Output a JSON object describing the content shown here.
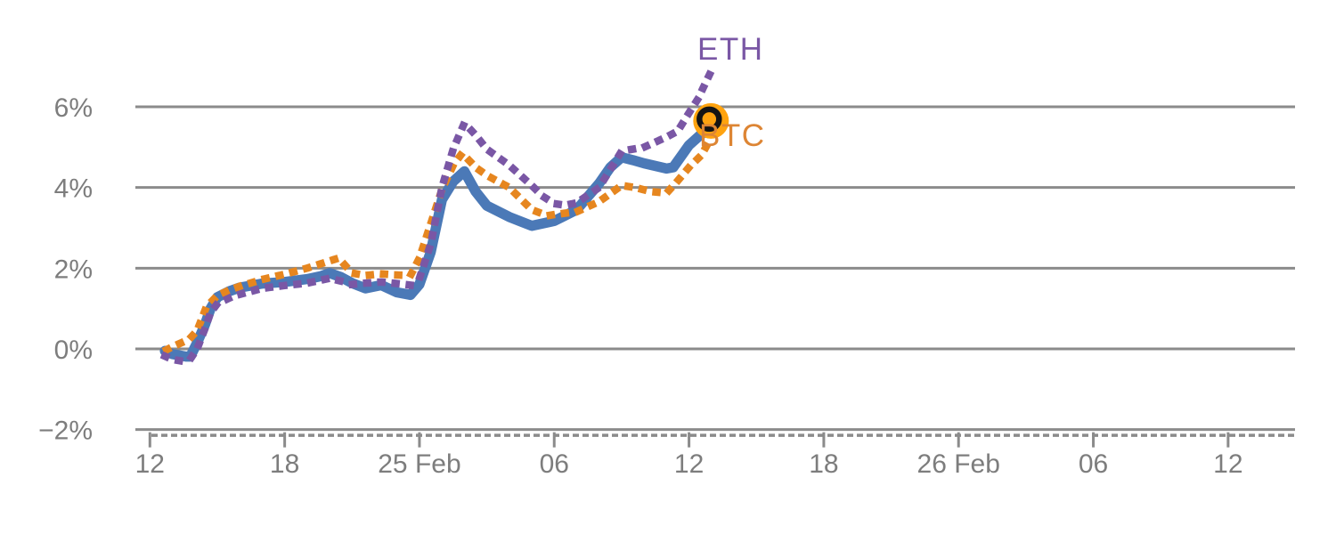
{
  "chart_data": {
    "type": "line",
    "description": "Intraday percent-change comparison chart: unlabeled thick blue line with ETH (purple dotted) and BTC (orange dotted) overlays; data runs 24 Feb ~12:40 to 25 Feb ~13:00, axis extends to ~26 Feb 14:00",
    "x_axis": {
      "unit": "time (hours, 0 = 24 Feb 12:00)",
      "range_hours": [
        -0.65,
        51.0
      ],
      "major_tick_hours": [
        0,
        6,
        12,
        18,
        24,
        30,
        36,
        42,
        48
      ],
      "tick_labels": [
        "12",
        "18",
        "25 Feb",
        "06",
        "12",
        "18",
        "26 Feb",
        "06",
        "12"
      ],
      "minor_ticks": "dashed strip below axis line"
    },
    "y_axis": {
      "unit": "percent change",
      "range": [
        -2.3,
        8.0
      ],
      "tick_values": [
        6,
        4,
        2,
        0,
        -2
      ],
      "tick_labels": [
        "6%",
        "4%",
        "2%",
        "0%",
        "−2%"
      ],
      "gridlines": true
    },
    "legend_position": "end-of-line labels (right of last points)",
    "series": [
      {
        "name": "",
        "key": "main",
        "color": "#4b79b7",
        "style": "solid",
        "points": [
          [
            0.67,
            -0.05
          ],
          [
            1.0,
            -0.13
          ],
          [
            1.6,
            -0.19
          ],
          [
            1.8,
            -0.19
          ],
          [
            2.1,
            0.15
          ],
          [
            2.45,
            0.6
          ],
          [
            2.7,
            1.0
          ],
          [
            3.0,
            1.28
          ],
          [
            3.5,
            1.42
          ],
          [
            4.0,
            1.52
          ],
          [
            5.0,
            1.62
          ],
          [
            6.0,
            1.66
          ],
          [
            7.0,
            1.73
          ],
          [
            7.6,
            1.8
          ],
          [
            8.0,
            1.88
          ],
          [
            8.5,
            1.78
          ],
          [
            9.0,
            1.63
          ],
          [
            9.6,
            1.5
          ],
          [
            10.3,
            1.58
          ],
          [
            11.0,
            1.4
          ],
          [
            11.6,
            1.34
          ],
          [
            12.0,
            1.6
          ],
          [
            12.5,
            2.4
          ],
          [
            13.0,
            3.7
          ],
          [
            13.5,
            4.15
          ],
          [
            14.0,
            4.4
          ],
          [
            14.5,
            3.9
          ],
          [
            15.0,
            3.55
          ],
          [
            16.0,
            3.27
          ],
          [
            17.0,
            3.05
          ],
          [
            18.0,
            3.17
          ],
          [
            19.0,
            3.45
          ],
          [
            20.0,
            4.1
          ],
          [
            20.5,
            4.5
          ],
          [
            21.0,
            4.75
          ],
          [
            21.5,
            4.68
          ],
          [
            22.0,
            4.6
          ],
          [
            23.0,
            4.47
          ],
          [
            23.3,
            4.5
          ],
          [
            24.0,
            5.05
          ],
          [
            24.5,
            5.3
          ],
          [
            25.0,
            5.5
          ]
        ]
      },
      {
        "name": "ETH",
        "key": "eth",
        "color": "#7a57a5",
        "style": "dotted",
        "points": [
          [
            0.67,
            -0.18
          ],
          [
            1.0,
            -0.26
          ],
          [
            1.4,
            -0.3
          ],
          [
            1.8,
            -0.25
          ],
          [
            2.1,
            0.0
          ],
          [
            2.45,
            0.5
          ],
          [
            2.7,
            0.9
          ],
          [
            3.0,
            1.12
          ],
          [
            3.5,
            1.25
          ],
          [
            4.0,
            1.35
          ],
          [
            5.0,
            1.5
          ],
          [
            6.0,
            1.57
          ],
          [
            7.0,
            1.63
          ],
          [
            8.0,
            1.75
          ],
          [
            8.5,
            1.68
          ],
          [
            9.0,
            1.6
          ],
          [
            9.6,
            1.63
          ],
          [
            10.3,
            1.66
          ],
          [
            11.0,
            1.62
          ],
          [
            11.6,
            1.58
          ],
          [
            12.0,
            1.75
          ],
          [
            12.5,
            2.6
          ],
          [
            13.0,
            4.0
          ],
          [
            13.5,
            4.95
          ],
          [
            14.0,
            5.6
          ],
          [
            14.5,
            5.3
          ],
          [
            15.0,
            4.95
          ],
          [
            16.0,
            4.55
          ],
          [
            17.0,
            4.05
          ],
          [
            17.5,
            3.78
          ],
          [
            18.0,
            3.6
          ],
          [
            18.5,
            3.56
          ],
          [
            19.0,
            3.62
          ],
          [
            20.0,
            4.0
          ],
          [
            20.5,
            4.45
          ],
          [
            21.0,
            4.9
          ],
          [
            21.5,
            4.95
          ],
          [
            22.0,
            5.0
          ],
          [
            23.0,
            5.25
          ],
          [
            23.5,
            5.4
          ],
          [
            24.0,
            5.85
          ],
          [
            24.4,
            6.2
          ],
          [
            24.7,
            6.55
          ],
          [
            25.0,
            6.9
          ]
        ]
      },
      {
        "name": "BTC",
        "key": "btc",
        "color": "#e6861f",
        "style": "dotted",
        "points": [
          [
            0.75,
            -0.02
          ],
          [
            1.0,
            0.05
          ],
          [
            1.4,
            0.15
          ],
          [
            1.8,
            0.27
          ],
          [
            2.1,
            0.45
          ],
          [
            2.45,
            0.95
          ],
          [
            2.7,
            1.15
          ],
          [
            3.0,
            1.32
          ],
          [
            3.5,
            1.45
          ],
          [
            4.0,
            1.55
          ],
          [
            5.0,
            1.72
          ],
          [
            6.0,
            1.85
          ],
          [
            7.0,
            2.0
          ],
          [
            8.0,
            2.18
          ],
          [
            8.4,
            2.25
          ],
          [
            9.0,
            1.88
          ],
          [
            9.6,
            1.82
          ],
          [
            10.3,
            1.86
          ],
          [
            11.0,
            1.83
          ],
          [
            11.6,
            1.82
          ],
          [
            12.0,
            2.25
          ],
          [
            12.5,
            3.1
          ],
          [
            13.0,
            3.95
          ],
          [
            13.5,
            4.55
          ],
          [
            13.9,
            4.85
          ],
          [
            14.5,
            4.5
          ],
          [
            15.0,
            4.3
          ],
          [
            16.0,
            4.0
          ],
          [
            17.0,
            3.45
          ],
          [
            17.7,
            3.3
          ],
          [
            18.0,
            3.33
          ],
          [
            19.0,
            3.4
          ],
          [
            20.0,
            3.65
          ],
          [
            21.0,
            4.05
          ],
          [
            21.6,
            4.0
          ],
          [
            22.3,
            3.9
          ],
          [
            23.0,
            3.86
          ],
          [
            23.5,
            4.17
          ],
          [
            24.0,
            4.5
          ],
          [
            24.55,
            4.8
          ],
          [
            24.8,
            5.05
          ],
          [
            25.0,
            5.3
          ]
        ]
      }
    ],
    "end_marker": {
      "attached_to": "main",
      "hour": 25.0,
      "pct": 5.65,
      "fill_color": "#ffa30f",
      "ring_color": "#141414"
    }
  },
  "labels": {
    "eth_series": "ETH",
    "btc_series": "BTC"
  },
  "colors": {
    "background": "#ffffff",
    "gridline": "#8b8b8b",
    "axis_text": "#7d7d7d",
    "main_line": "#4b79b7",
    "eth_line": "#7a57a5",
    "btc_line": "#e6861f",
    "marker_fill": "#ffa30f",
    "marker_ring": "#141414"
  }
}
